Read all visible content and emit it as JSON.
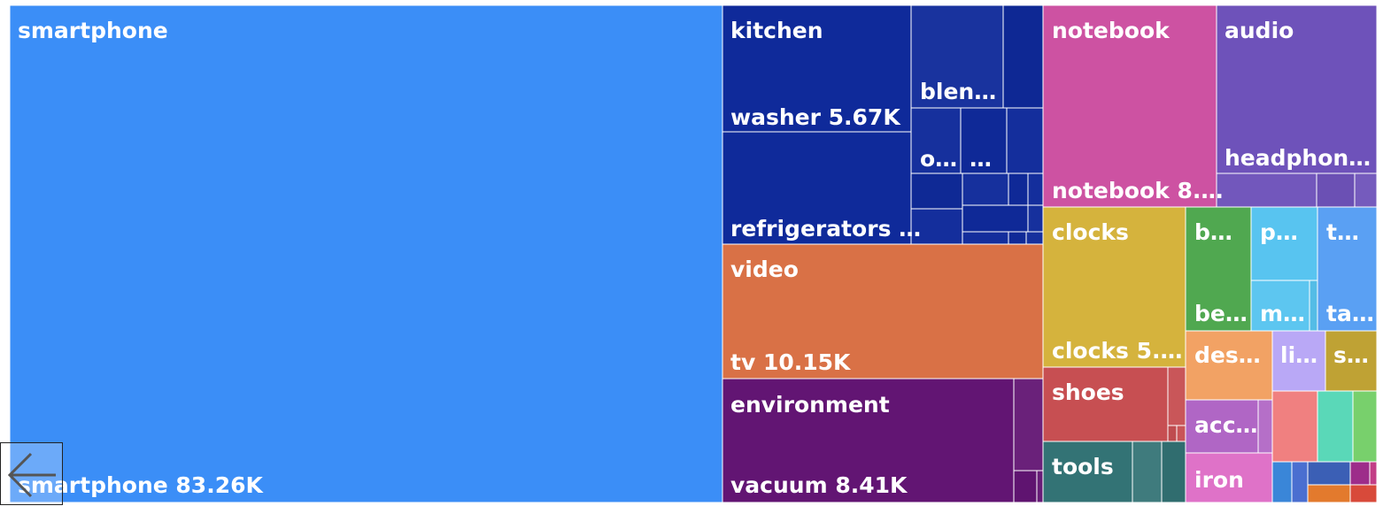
{
  "chart_data": {
    "type": "treemap",
    "unit": "K",
    "groups": [
      {
        "name": "smartphone",
        "color": "#3b8ef7",
        "items": [
          {
            "label": "smartphone",
            "text": "smartphone 83.26K",
            "value": 83.26
          }
        ]
      },
      {
        "name": "kitchen",
        "color": "#0f2a9a",
        "items": [
          {
            "label": "washer",
            "text": "washer 5.67K",
            "value": 5.67
          },
          {
            "label": "refrigerators",
            "text": "refrigerators …",
            "value": 5.6
          },
          {
            "label": "blender",
            "text": "blen…"
          },
          {
            "label": "o",
            "text": "o…"
          },
          {
            "label": "",
            "text": "…"
          }
        ]
      },
      {
        "name": "video",
        "color": "#d97146",
        "items": [
          {
            "label": "tv",
            "text": "tv 10.15K",
            "value": 10.15
          }
        ]
      },
      {
        "name": "environment",
        "color": "#621573",
        "items": [
          {
            "label": "vacuum",
            "text": "vacuum 8.41K",
            "value": 8.41
          }
        ]
      },
      {
        "name": "notebook",
        "color": "#cd52a2",
        "items": [
          {
            "label": "notebook",
            "text": "notebook 8.…"
          }
        ]
      },
      {
        "name": "audio",
        "color": "#6e52ba",
        "items": [
          {
            "label": "headphones",
            "text": "headphon…"
          }
        ]
      },
      {
        "name": "clocks",
        "color": "#d5b33d",
        "items": [
          {
            "label": "clocks",
            "text": "clocks 5.…"
          }
        ]
      },
      {
        "name": "b",
        "color": "#50a850",
        "header": "b…",
        "items": [
          {
            "label": "be",
            "text": "be…"
          }
        ]
      },
      {
        "name": "p",
        "color": "#58c4f0",
        "header": "p…",
        "items": [
          {
            "label": "m",
            "text": "m…"
          }
        ]
      },
      {
        "name": "t",
        "color": "#5aa0f3",
        "header": "t…",
        "items": [
          {
            "label": "ta",
            "text": "ta…"
          }
        ]
      },
      {
        "name": "shoes",
        "color": "#c74f52",
        "items": []
      },
      {
        "name": "tools",
        "color": "#337375",
        "items": []
      },
      {
        "name": "des",
        "color": "#f2a264",
        "header": "des…",
        "items": []
      },
      {
        "name": "li",
        "color": "#b9a8f6",
        "header": "li…",
        "items": []
      },
      {
        "name": "s",
        "color": "#bfa234",
        "header": "s…",
        "items": []
      },
      {
        "name": "acc",
        "color": "#b066c5",
        "header": "acc…",
        "items": []
      },
      {
        "name": "iron",
        "color": "#df72c8",
        "items": []
      }
    ]
  },
  "ui": {
    "back_button_icon": "arrow-left-icon",
    "text_color": "#ffffff",
    "border_color": "#ffffff"
  }
}
